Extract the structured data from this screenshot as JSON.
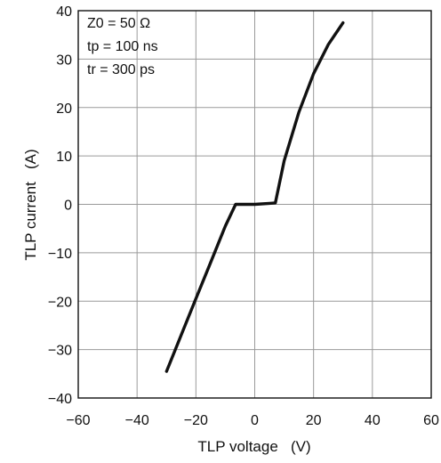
{
  "chart_data": {
    "type": "line",
    "xlabel": "TLP voltage   (V)",
    "ylabel": "TLP current   (A)",
    "xlim": [
      -60,
      60
    ],
    "ylim": [
      -40,
      40
    ],
    "x_ticks": [
      "−60",
      "−40",
      "−20",
      "0",
      "20",
      "40",
      "60"
    ],
    "y_ticks": [
      "40",
      "30",
      "20",
      "10",
      "0",
      "−10",
      "−20",
      "−30",
      "−40"
    ],
    "grid": true,
    "annotations": [
      "Z0 = 50 Ω",
      "tp = 100 ns",
      "tr = 300 ps"
    ],
    "series": [
      {
        "x": [
          -30,
          -25,
          -20,
          -15,
          -10,
          -6.5,
          -5,
          0,
          5,
          7,
          10,
          15,
          20,
          25,
          30
        ],
        "y": [
          -34.5,
          -27,
          -19.5,
          -12,
          -4.5,
          0,
          0,
          0,
          0.2,
          0.3,
          9,
          19,
          27,
          33,
          37.5
        ]
      }
    ],
    "colors": {
      "line": "#111111",
      "grid": "#9a9a9a",
      "frame": "#111111"
    }
  }
}
